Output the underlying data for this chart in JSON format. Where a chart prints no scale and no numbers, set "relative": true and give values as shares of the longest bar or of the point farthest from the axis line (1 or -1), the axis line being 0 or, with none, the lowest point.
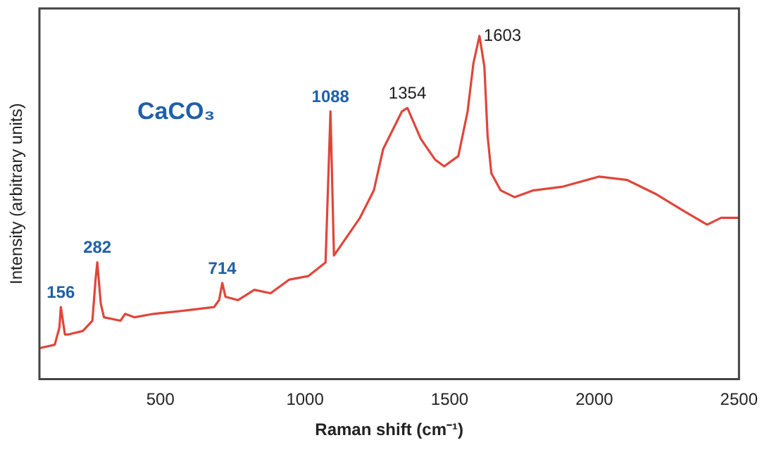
{
  "chart_data": {
    "type": "line",
    "xlabel": "Raman shift (cm⁻¹)",
    "ylabel": "Intensity (arbitrary units)",
    "relative": true,
    "xlim": [
      82,
      2500
    ],
    "xticks": [
      500,
      1000,
      1500,
      2000,
      2500
    ],
    "grid": false,
    "legend": false,
    "marker": "none",
    "line_style": "solid",
    "x": [
      82,
      135,
      151,
      156,
      170,
      182,
      232,
      265,
      276,
      282,
      294,
      305,
      362,
      378,
      411,
      476,
      589,
      686,
      703,
      714,
      725,
      768,
      825,
      881,
      946,
      1011,
      1071,
      1088,
      1100,
      1141,
      1190,
      1238,
      1270,
      1335,
      1354,
      1400,
      1449,
      1481,
      1530,
      1562,
      1582,
      1603,
      1620,
      1631,
      1644,
      1676,
      1725,
      1790,
      1887,
      2017,
      2114,
      2211,
      2309,
      2390,
      2438,
      2500
    ],
    "series": [
      {
        "color": "#e0453a",
        "values": [
          0.09,
          0.1,
          0.15,
          0.21,
          0.13,
          0.13,
          0.14,
          0.17,
          0.29,
          0.34,
          0.22,
          0.18,
          0.17,
          0.19,
          0.18,
          0.19,
          0.2,
          0.21,
          0.23,
          0.28,
          0.24,
          0.23,
          0.26,
          0.25,
          0.29,
          0.3,
          0.34,
          0.78,
          0.36,
          0.41,
          0.47,
          0.55,
          0.67,
          0.78,
          0.79,
          0.7,
          0.64,
          0.62,
          0.65,
          0.78,
          0.92,
          1.0,
          0.91,
          0.71,
          0.6,
          0.55,
          0.53,
          0.55,
          0.56,
          0.59,
          0.58,
          0.54,
          0.49,
          0.45,
          0.47,
          0.47
        ]
      }
    ],
    "annotations": [
      {
        "text": "156",
        "x": 156,
        "y": 0.21
      },
      {
        "text": "282",
        "x": 282,
        "y": 0.34
      },
      {
        "text": "714",
        "x": 714,
        "y": 0.28
      },
      {
        "text": "1088",
        "x": 1088,
        "y": 0.78
      },
      {
        "text": "1354",
        "x": 1354,
        "y": 0.79
      },
      {
        "text": "1603",
        "x": 1603,
        "y": 1.0
      },
      "CaCO₃"
    ]
  }
}
